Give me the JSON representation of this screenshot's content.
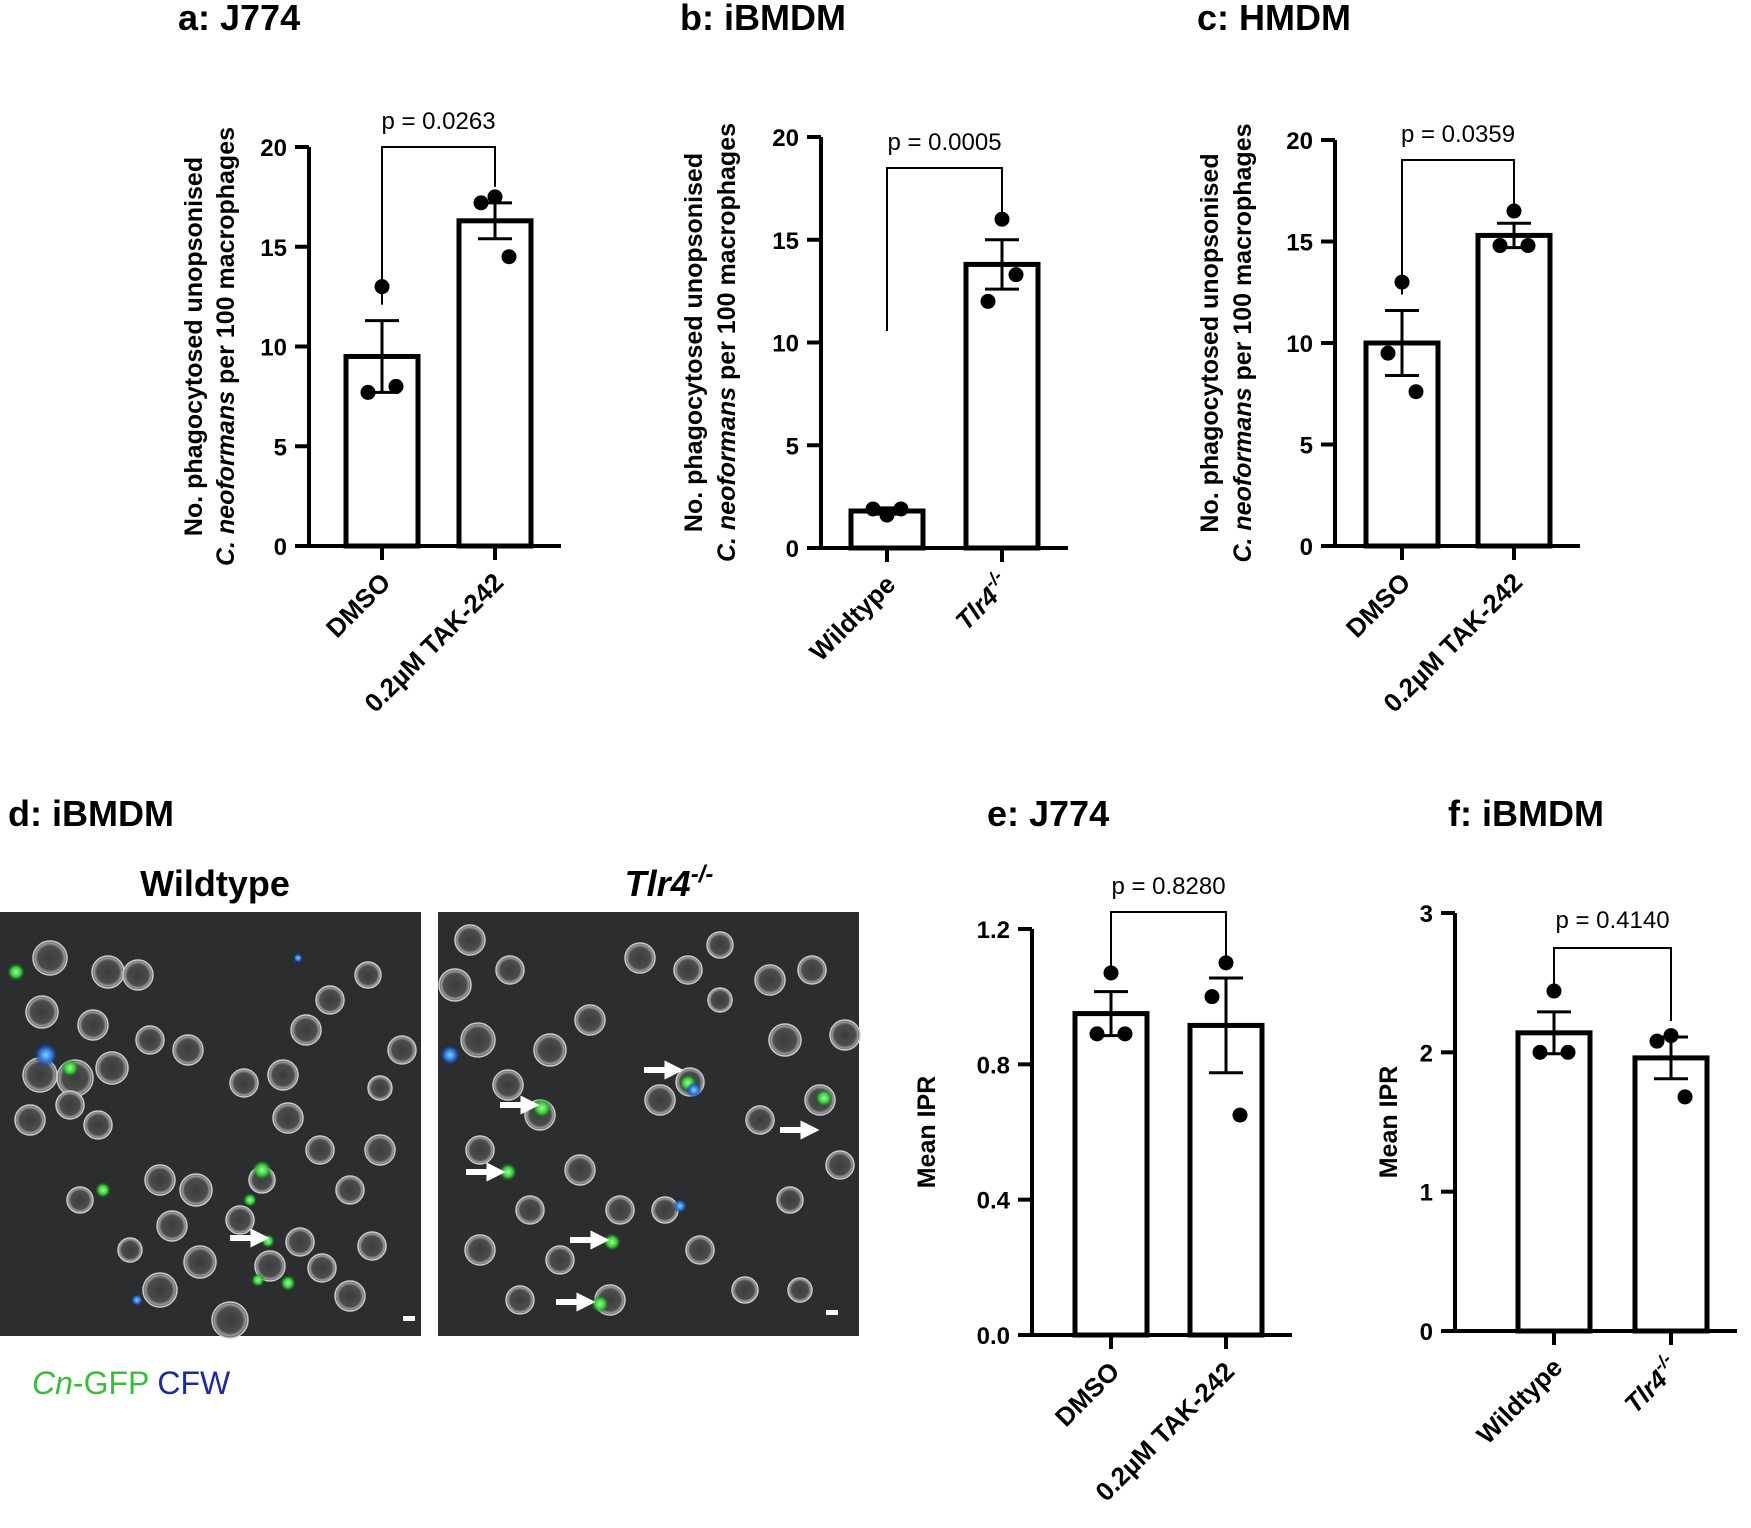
{
  "chart_data": [
    {
      "id": "a",
      "type": "bar",
      "title": "a: J774",
      "ylabel_lines": [
        {
          "segments": [
            {
              "text": "No. phagocytosed unopsonised",
              "italic": false
            }
          ]
        },
        {
          "segments": [
            {
              "text": "C. neoformans",
              "italic": true
            },
            {
              "text": " per 100 macrophages",
              "italic": false
            }
          ]
        }
      ],
      "ylim": [
        0,
        20
      ],
      "yticks": [
        0,
        5,
        10,
        15,
        20
      ],
      "categories": [
        {
          "segments": [
            {
              "text": "DMSO",
              "italic": false
            }
          ]
        },
        {
          "segments": [
            {
              "text": "0.2µM TAK-242",
              "italic": false
            }
          ]
        }
      ],
      "values": [
        9.5,
        16.3
      ],
      "errors": [
        1.8,
        0.9
      ],
      "points": [
        [
          13.0,
          7.7,
          8.0
        ],
        [
          17.5,
          17.2,
          14.5
        ]
      ],
      "pvalue": "p = 0.0263"
    },
    {
      "id": "b",
      "type": "bar",
      "title": "b: iBMDM",
      "ylabel_lines": [
        {
          "segments": [
            {
              "text": "No. phagocytosed unopsonised",
              "italic": false
            }
          ]
        },
        {
          "segments": [
            {
              "text": "C. neoformans",
              "italic": true
            },
            {
              "text": " per 100 macrophages",
              "italic": false
            }
          ]
        }
      ],
      "ylim": [
        0,
        20
      ],
      "yticks": [
        0,
        5,
        10,
        15,
        20
      ],
      "categories": [
        {
          "segments": [
            {
              "text": "Wildtype",
              "italic": false
            }
          ]
        },
        {
          "segments": [
            {
              "text": "Tlr4",
              "italic": true
            },
            {
              "text": "-/-",
              "italic": true,
              "sup": true
            }
          ]
        }
      ],
      "values": [
        1.8,
        13.8
      ],
      "errors": [
        0.15,
        1.2
      ],
      "points": [
        [
          1.6,
          1.9,
          1.9
        ],
        [
          16.0,
          12.0,
          13.3
        ]
      ],
      "pvalue": "p = 0.0005"
    },
    {
      "id": "c",
      "type": "bar",
      "title": "c: HMDM",
      "ylabel_lines": [
        {
          "segments": [
            {
              "text": "No. phagocytosed unopsonised",
              "italic": false
            }
          ]
        },
        {
          "segments": [
            {
              "text": "C. neoformans",
              "italic": true
            },
            {
              "text": " per 100 macrophages",
              "italic": false
            }
          ]
        }
      ],
      "ylim": [
        0,
        20
      ],
      "yticks": [
        0,
        5,
        10,
        15,
        20
      ],
      "categories": [
        {
          "segments": [
            {
              "text": "DMSO",
              "italic": false
            }
          ]
        },
        {
          "segments": [
            {
              "text": "0.2µM TAK-242",
              "italic": false
            }
          ]
        }
      ],
      "values": [
        10.0,
        15.3
      ],
      "errors": [
        1.6,
        0.6
      ],
      "points": [
        [
          13.0,
          9.5,
          7.6
        ],
        [
          16.5,
          14.8,
          14.8
        ]
      ],
      "pvalue": "p = 0.0359"
    },
    {
      "id": "e",
      "type": "bar",
      "title": "e: J774",
      "ylabel_lines": [
        {
          "segments": [
            {
              "text": "Mean IPR",
              "italic": false
            }
          ]
        }
      ],
      "ylim": [
        0,
        1.2
      ],
      "yticks": [
        0.0,
        0.4,
        0.8,
        1.2
      ],
      "ytick_labels": [
        "0.0",
        "0.4",
        "0.8",
        "1.2"
      ],
      "categories": [
        {
          "segments": [
            {
              "text": "DMSO",
              "italic": false
            }
          ]
        },
        {
          "segments": [
            {
              "text": "0.2µM TAK-242",
              "italic": false
            }
          ]
        }
      ],
      "values": [
        0.95,
        0.915
      ],
      "errors": [
        0.065,
        0.14
      ],
      "points": [
        [
          1.07,
          0.89,
          0.89
        ],
        [
          1.1,
          1.0,
          0.65
        ]
      ],
      "pvalue": "p = 0.8280"
    },
    {
      "id": "f",
      "type": "bar",
      "title": "f: iBMDM",
      "ylabel_lines": [
        {
          "segments": [
            {
              "text": "Mean IPR",
              "italic": false
            }
          ]
        }
      ],
      "ylim": [
        0,
        3
      ],
      "yticks": [
        0,
        1,
        2,
        3
      ],
      "categories": [
        {
          "segments": [
            {
              "text": "Wildtype",
              "italic": false
            }
          ]
        },
        {
          "segments": [
            {
              "text": "Tlr4",
              "italic": true
            },
            {
              "text": "-/-",
              "italic": true,
              "sup": true
            }
          ]
        }
      ],
      "values": [
        2.14,
        1.96
      ],
      "errors": [
        0.15,
        0.15
      ],
      "points": [
        [
          2.44,
          2.0,
          2.0
        ],
        [
          2.12,
          2.08,
          1.68
        ]
      ],
      "pvalue": "p = 0.4140"
    }
  ],
  "micrograph": {
    "title": "d: iBMDM",
    "left_label": "Wildtype",
    "right_label": {
      "main": "Tlr4",
      "sup": "-/-"
    },
    "legend_gfp_italic": "Cn",
    "legend_gfp_rest": "-GFP",
    "legend_cfw": "CFW",
    "colors": {
      "gfp": "#3dbb3d",
      "cfw": "#1f2a9c",
      "background": "#2b2d2f"
    }
  }
}
